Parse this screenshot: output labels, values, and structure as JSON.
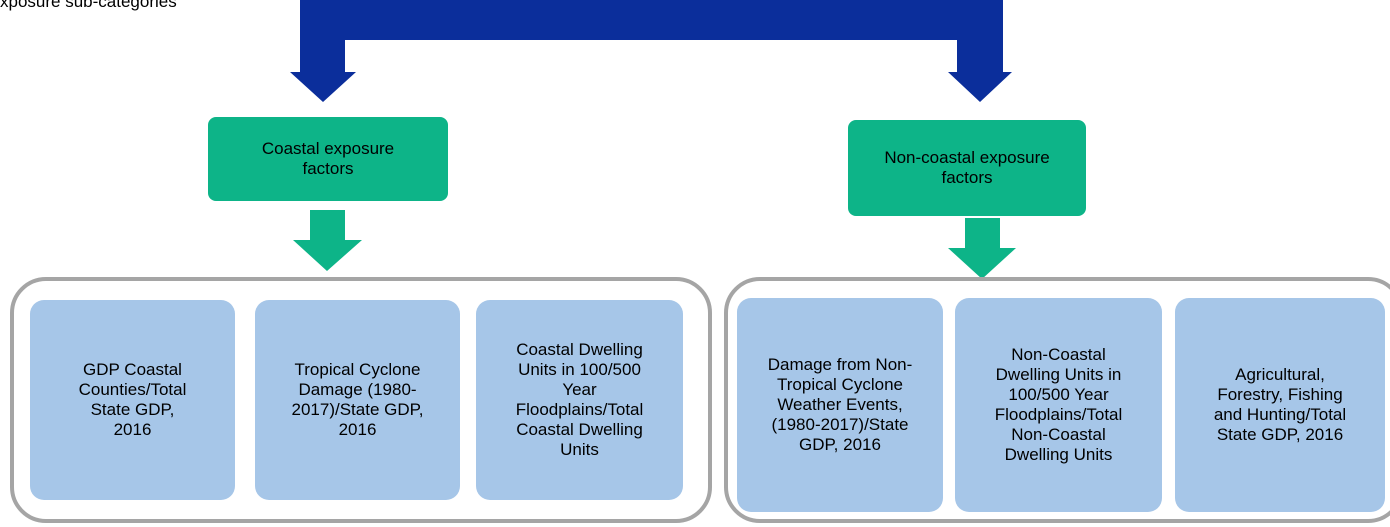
{
  "header": {
    "title": "xposure sub-categories"
  },
  "groups": [
    {
      "label": [
        "Coastal exposure",
        "factors"
      ],
      "factors": [
        [
          "GDP Coastal",
          "Counties/Total",
          "State GDP,",
          "2016"
        ],
        [
          "Tropical Cyclone",
          "Damage (1980-",
          "2017)/State GDP,",
          "2016"
        ],
        [
          "Coastal Dwelling",
          "Units in 100/500",
          "Year",
          "Floodplains/Total",
          "Coastal Dwelling",
          "Units"
        ]
      ]
    },
    {
      "label": [
        "Non-coastal exposure",
        "factors"
      ],
      "factors": [
        [
          "Damage from Non-",
          "Tropical Cyclone",
          "Weather Events,",
          "(1980-2017)/State",
          "GDP, 2016"
        ],
        [
          "Non-Coastal",
          "Dwelling Units in",
          "100/500 Year",
          "Floodplains/Total",
          "Non-Coastal",
          "Dwelling Units"
        ],
        [
          "Agricultural,",
          "Forestry, Fishing",
          "and Hunting/Total",
          "State GDP, 2016"
        ]
      ]
    }
  ]
}
